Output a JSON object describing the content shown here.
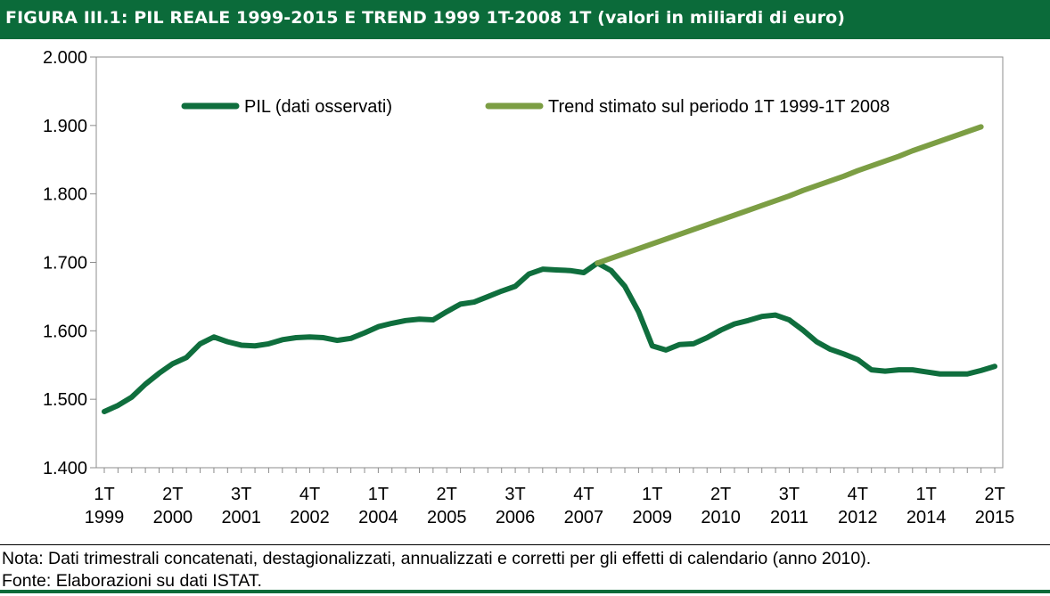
{
  "title": "FIGURA III.1: PIL REALE 1999-2015 E TREND 1999 1T-2008 1T (valori in miliardi di euro)",
  "notes": {
    "nota": "Nota: Dati trimestrali concatenati, destagionalizzati, annualizzati e corretti per gli effetti di calendario (anno 2010).",
    "fonte": "Fonte: Elaborazioni su dati ISTAT."
  },
  "colors": {
    "header": "#0b6b3a",
    "observed": "#0f6e3d",
    "trend": "#7c9e44"
  },
  "chart_data": {
    "type": "line",
    "ylim": [
      1400,
      2000
    ],
    "yticks": [
      1400,
      1500,
      1600,
      1700,
      1800,
      1900,
      2000
    ],
    "ytick_labels": [
      "1.400",
      "1.500",
      "1.600",
      "1.700",
      "1.800",
      "1.900",
      "2.000"
    ],
    "x_quarter_labels": [
      {
        "index": 0,
        "quarter": "1T",
        "year": "1999"
      },
      {
        "index": 5,
        "quarter": "2T",
        "year": "2000"
      },
      {
        "index": 10,
        "quarter": "3T",
        "year": "2001"
      },
      {
        "index": 15,
        "quarter": "4T",
        "year": "2002"
      },
      {
        "index": 20,
        "quarter": "1T",
        "year": "2004"
      },
      {
        "index": 25,
        "quarter": "2T",
        "year": "2005"
      },
      {
        "index": 30,
        "quarter": "3T",
        "year": "2006"
      },
      {
        "index": 35,
        "quarter": "4T",
        "year": "2007"
      },
      {
        "index": 40,
        "quarter": "1T",
        "year": "2009"
      },
      {
        "index": 45,
        "quarter": "2T",
        "year": "2010"
      },
      {
        "index": 50,
        "quarter": "3T",
        "year": "2011"
      },
      {
        "index": 55,
        "quarter": "4T",
        "year": "2012"
      },
      {
        "index": 60,
        "quarter": "1T",
        "year": "2014"
      },
      {
        "index": 65,
        "quarter": "2T",
        "year": "2015"
      }
    ],
    "legend_position": "top",
    "series": [
      {
        "name": "PIL (dati osservati)",
        "start_index": 0,
        "values": [
          1482,
          1491,
          1503,
          1522,
          1538,
          1552,
          1561,
          1581,
          1591,
          1584,
          1579,
          1578,
          1581,
          1587,
          1590,
          1591,
          1590,
          1586,
          1589,
          1597,
          1606,
          1611,
          1615,
          1617,
          1616,
          1628,
          1639,
          1642,
          1650,
          1658,
          1665,
          1683,
          1690,
          1689,
          1688,
          1685,
          1699,
          1688,
          1665,
          1628,
          1578,
          1572,
          1580,
          1581,
          1590,
          1601,
          1610,
          1615,
          1621,
          1623,
          1616,
          1601,
          1584,
          1573,
          1566,
          1558,
          1543,
          1541,
          1543,
          1543,
          1540,
          1537,
          1537,
          1537,
          1542,
          1548
        ]
      },
      {
        "name": "Trend stimato sul periodo 1T 1999-1T 2008",
        "start_index": 36,
        "values": [
          1699,
          1706,
          1713,
          1720,
          1727,
          1734,
          1741,
          1748,
          1755,
          1762,
          1769,
          1776,
          1783,
          1790,
          1797,
          1805,
          1812,
          1819,
          1826,
          1834,
          1841,
          1848,
          1855,
          1863,
          1870,
          1877,
          1884,
          1891,
          1898
        ]
      }
    ]
  }
}
